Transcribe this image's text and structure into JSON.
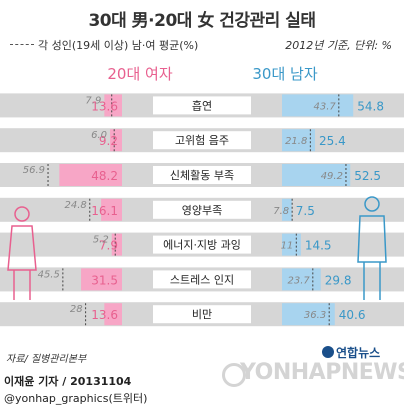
{
  "title": "30대 男·20대 女 건강관리 실태",
  "legend_text": "각 성인(19세 이상) 남·여 평균(%)",
  "note": "2012년 기준, 단위: %",
  "female_header": "20대 여자",
  "male_header": "30대 남자",
  "footer": {
    "source": "자료/ 질병관리본부",
    "reporter": "이재윤 기자 / 20131104",
    "handle": "@yonhap_graphics(트위터)",
    "logo": "연합뉴스",
    "watermark": "YONHAPNEWS"
  },
  "colors": {
    "female_bar": "#f7a6c6",
    "male_bar": "#a8d4ef",
    "female_text": "#e8608f",
    "male_text": "#3a98c8",
    "row_band": "#d6d6d6",
    "label_box": "#ffffff"
  },
  "chart_data": {
    "type": "bar",
    "unit": "%",
    "categories": [
      "흡연",
      "고위험 음주",
      "신체활동 부족",
      "영양부족",
      "에너지·지방 과잉",
      "스트레스 인지",
      "비만"
    ],
    "series": [
      {
        "name": "20대 여자",
        "values": [
          13.6,
          9.2,
          48.2,
          16.1,
          7.9,
          31.5,
          13.6
        ]
      },
      {
        "name": "30대 남자",
        "values": [
          54.8,
          25.4,
          52.5,
          7.5,
          14.5,
          29.8,
          40.6
        ]
      }
    ],
    "averages": {
      "female": [
        7.9,
        6.0,
        56.9,
        24.8,
        5.2,
        45.5,
        28
      ],
      "male": [
        43.7,
        21.8,
        49.2,
        7.8,
        11,
        23.7,
        36.3
      ]
    },
    "labels": {
      "female_avg": [
        "7.9",
        "6.0",
        "56.9",
        "24.8",
        "5.2",
        "45.5",
        "28"
      ],
      "female_val": [
        "13.6",
        "9.2",
        "48.2",
        "16.1",
        "7.9",
        "31.5",
        "13.6"
      ],
      "male_avg": [
        "43.7",
        "21.8",
        "49.2",
        "7.8",
        "11",
        "23.7",
        "36.3"
      ],
      "male_val": [
        "54.8",
        "25.4",
        "52.5",
        "7.5",
        "14.5",
        "29.8",
        "40.6"
      ]
    }
  }
}
